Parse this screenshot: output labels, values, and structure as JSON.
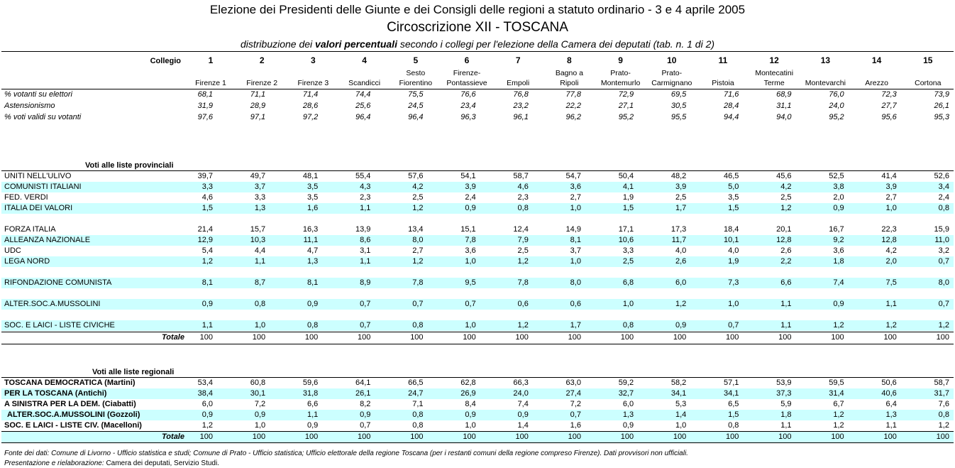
{
  "header": {
    "title": "Elezione dei Presidenti delle Giunte e dei Consigli delle regioni a statuto ordinario - 3 e 4 aprile 2005",
    "subtitle": "Circoscrizione XII - TOSCANA",
    "description": {
      "before": "distribuzione dei",
      "emphasis": "valori percentuali",
      "after": "secondo i collegi per l'elezione della Camera dei deputati (tab. n. 1 di 2)"
    }
  },
  "table": {
    "collegio_label": "Collegio",
    "numbers": [
      "1",
      "2",
      "3",
      "4",
      "5",
      "6",
      "7",
      "8",
      "9",
      "10",
      "11",
      "12",
      "13",
      "14",
      "15"
    ],
    "names": [
      [
        "Firenze 1"
      ],
      [
        "Firenze 2"
      ],
      [
        "Firenze 3"
      ],
      [
        "Scandicci"
      ],
      [
        "Sesto",
        "Fiorentino"
      ],
      [
        "Firenze-",
        "Pontassieve"
      ],
      [
        "Empoli"
      ],
      [
        "Bagno a",
        "Ripoli"
      ],
      [
        "Prato-",
        "Montemurlo"
      ],
      [
        "Prato-",
        "Carmignano"
      ],
      [
        "Pistoia"
      ],
      [
        "Montecatini",
        "Terme"
      ],
      [
        "Montevarchi"
      ],
      [
        "Arezzo"
      ],
      [
        "Cortona"
      ]
    ],
    "stats": [
      {
        "label": "% votanti su elettori",
        "values": [
          "68,1",
          "71,1",
          "71,4",
          "74,4",
          "75,5",
          "76,6",
          "76,8",
          "77,8",
          "72,9",
          "69,5",
          "71,6",
          "68,9",
          "76,0",
          "72,3",
          "73,9"
        ]
      },
      {
        "label": "Astensionismo",
        "values": [
          "31,9",
          "28,9",
          "28,6",
          "25,6",
          "24,5",
          "23,4",
          "23,2",
          "22,2",
          "27,1",
          "30,5",
          "28,4",
          "31,1",
          "24,0",
          "27,7",
          "26,1"
        ]
      },
      {
        "label": "% voti validi su votanti",
        "values": [
          "97,6",
          "97,1",
          "97,2",
          "96,4",
          "96,4",
          "96,3",
          "96,1",
          "96,2",
          "95,2",
          "95,5",
          "94,4",
          "94,0",
          "95,2",
          "95,6",
          "95,3"
        ]
      }
    ],
    "provincial": {
      "heading": "Voti alle liste provinciali",
      "groups": [
        [
          {
            "label": "UNITI NELL'ULIVO",
            "values": [
              "39,7",
              "49,7",
              "48,1",
              "55,4",
              "57,6",
              "54,1",
              "58,7",
              "54,7",
              "50,4",
              "48,2",
              "46,5",
              "45,6",
              "52,5",
              "41,4",
              "52,6"
            ]
          },
          {
            "label": "COMUNISTI ITALIANI",
            "values": [
              "3,3",
              "3,7",
              "3,5",
              "4,3",
              "4,2",
              "3,9",
              "4,6",
              "3,6",
              "4,1",
              "3,9",
              "5,0",
              "4,2",
              "3,8",
              "3,9",
              "3,4"
            ]
          },
          {
            "label": "FED. VERDI",
            "values": [
              "4,6",
              "3,3",
              "3,5",
              "2,3",
              "2,5",
              "2,4",
              "2,3",
              "2,7",
              "1,9",
              "2,5",
              "3,5",
              "2,5",
              "2,0",
              "2,7",
              "2,4"
            ]
          },
          {
            "label": "ITALIA DEI VALORI",
            "values": [
              "1,5",
              "1,3",
              "1,6",
              "1,1",
              "1,2",
              "0,9",
              "0,8",
              "1,0",
              "1,5",
              "1,7",
              "1,5",
              "1,2",
              "0,9",
              "1,0",
              "0,8"
            ]
          }
        ],
        [
          {
            "label": "FORZA ITALIA",
            "values": [
              "21,4",
              "15,7",
              "16,3",
              "13,9",
              "13,4",
              "15,1",
              "12,4",
              "14,9",
              "17,1",
              "17,3",
              "18,4",
              "20,1",
              "16,7",
              "22,3",
              "15,9"
            ]
          },
          {
            "label": "ALLEANZA NAZIONALE",
            "values": [
              "12,9",
              "10,3",
              "11,1",
              "8,6",
              "8,0",
              "7,8",
              "7,9",
              "8,1",
              "10,6",
              "11,7",
              "10,1",
              "12,8",
              "9,2",
              "12,8",
              "11,0"
            ]
          },
          {
            "label": "UDC",
            "values": [
              "5,4",
              "4,4",
              "4,7",
              "3,1",
              "2,7",
              "3,6",
              "2,5",
              "3,7",
              "3,3",
              "4,0",
              "4,0",
              "2,6",
              "3,6",
              "4,2",
              "3,2"
            ]
          },
          {
            "label": "LEGA NORD",
            "values": [
              "1,2",
              "1,1",
              "1,3",
              "1,1",
              "1,2",
              "1,0",
              "1,2",
              "1,0",
              "2,5",
              "2,6",
              "1,9",
              "2,2",
              "1,8",
              "2,0",
              "0,7"
            ]
          }
        ],
        [
          {
            "label": "RIFONDAZIONE COMUNISTA",
            "values": [
              "8,1",
              "8,7",
              "8,1",
              "8,9",
              "7,8",
              "9,5",
              "7,8",
              "8,0",
              "6,8",
              "6,0",
              "7,3",
              "6,6",
              "7,4",
              "7,5",
              "8,0"
            ]
          }
        ],
        [
          {
            "label": "ALTER.SOC.A.MUSSOLINI",
            "values": [
              "0,9",
              "0,8",
              "0,9",
              "0,7",
              "0,7",
              "0,7",
              "0,6",
              "0,6",
              "1,0",
              "1,2",
              "1,0",
              "1,1",
              "0,9",
              "1,1",
              "0,7"
            ]
          }
        ],
        [
          {
            "label": "SOC. E LAICI - LISTE CIVICHE",
            "values": [
              "1,1",
              "1,0",
              "0,8",
              "0,7",
              "0,8",
              "1,0",
              "1,2",
              "1,7",
              "0,8",
              "0,9",
              "0,7",
              "1,1",
              "1,2",
              "1,2",
              "1,2"
            ]
          }
        ]
      ],
      "total": {
        "label": "Totale",
        "values": [
          "100",
          "100",
          "100",
          "100",
          "100",
          "100",
          "100",
          "100",
          "100",
          "100",
          "100",
          "100",
          "100",
          "100",
          "100"
        ]
      }
    },
    "regional": {
      "heading": "Voti alle liste regionali",
      "rows": [
        {
          "label": "TOSCANA DEMOCRATICA (Martini)",
          "values": [
            "53,4",
            "60,8",
            "59,6",
            "64,1",
            "66,5",
            "62,8",
            "66,3",
            "63,0",
            "59,2",
            "58,2",
            "57,1",
            "53,9",
            "59,5",
            "50,6",
            "58,7"
          ]
        },
        {
          "label": "PER LA TOSCANA (Antichi)",
          "values": [
            "38,4",
            "30,1",
            "31,8",
            "26,1",
            "24,7",
            "26,9",
            "24,0",
            "27,4",
            "32,7",
            "34,1",
            "34,1",
            "37,3",
            "31,4",
            "40,6",
            "31,7"
          ]
        },
        {
          "label": "A SINISTRA PER LA DEM. (Ciabatti)",
          "values": [
            "6,0",
            "7,2",
            "6,6",
            "8,2",
            "7,1",
            "8,4",
            "7,4",
            "7,2",
            "6,0",
            "5,3",
            "6,5",
            "5,9",
            "6,7",
            "6,4",
            "7,6"
          ]
        },
        {
          "label": "ALTER.SOC.A.MUSSOLINI (Gozzoli)",
          "values": [
            "0,9",
            "0,9",
            "1,1",
            "0,9",
            "0,8",
            "0,9",
            "0,9",
            "0,7",
            "1,3",
            "1,4",
            "1,5",
            "1,8",
            "1,2",
            "1,3",
            "0,8"
          ]
        },
        {
          "label": "SOC. E LAICI - LISTE CIV. (Macelloni)",
          "values": [
            "1,2",
            "1,0",
            "0,9",
            "0,7",
            "0,8",
            "1,0",
            "1,4",
            "1,6",
            "0,9",
            "1,0",
            "0,8",
            "1,1",
            "1,2",
            "1,1",
            "1,2"
          ]
        }
      ],
      "total": {
        "label": "Totale",
        "values": [
          "100",
          "100",
          "100",
          "100",
          "100",
          "100",
          "100",
          "100",
          "100",
          "100",
          "100",
          "100",
          "100",
          "100",
          "100"
        ]
      }
    }
  },
  "footer": {
    "source": "Fonte dei dati: Comune di Livorno - Ufficio statistica e studi; Comune di Prato - Ufficio statistica; Ufficio elettorale della regione Toscana (per i restanti comuni della regione compreso Firenze). Dati provvisori non ufficiali.",
    "credit_label": "Presentazione e rielaborazione:",
    "credit": "Camera dei deputati, Servizio Studi."
  }
}
